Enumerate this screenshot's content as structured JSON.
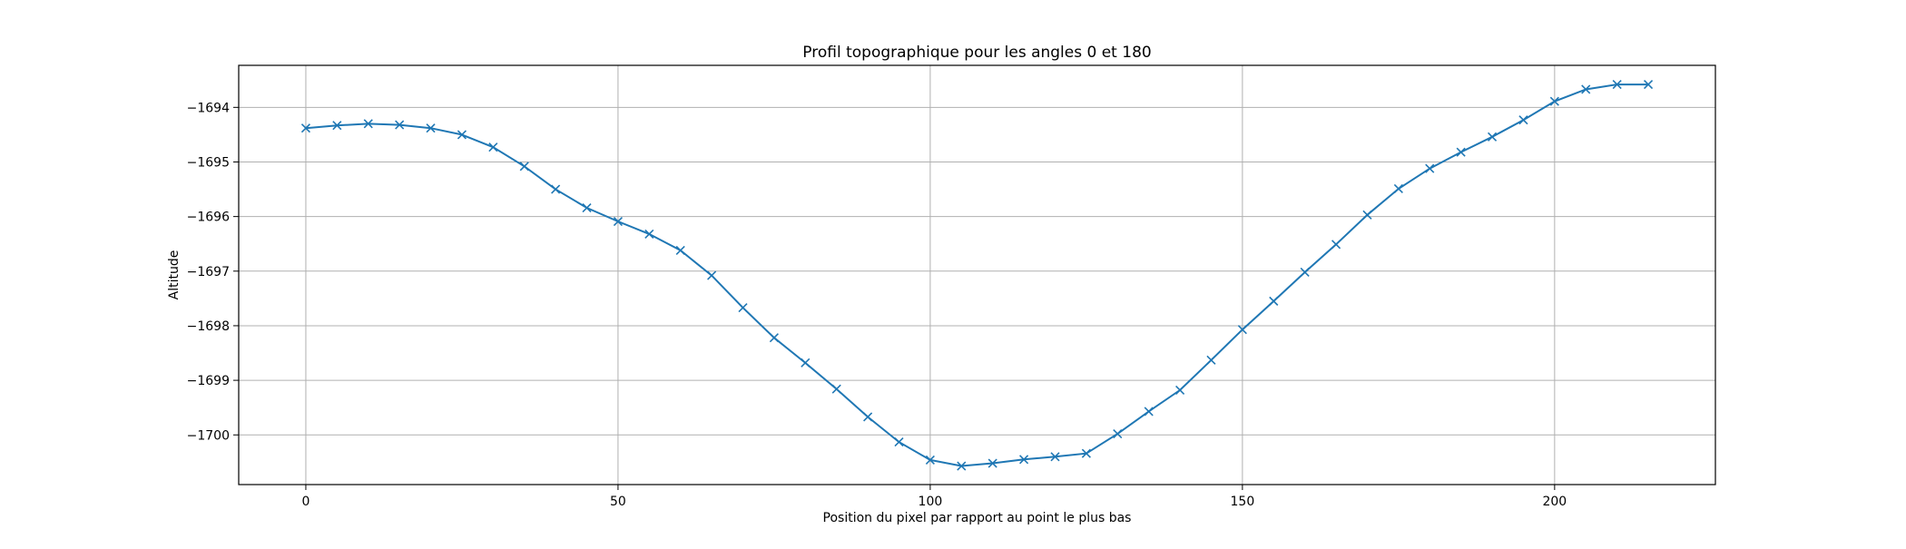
{
  "chart_data": {
    "type": "line",
    "title": "Profil topographique pour les angles 0 et 180",
    "xlabel": "Position du pixel par rapport au point le plus bas",
    "ylabel": "Altitude",
    "xlim": [
      -10.75,
      225.75
    ],
    "ylim": [
      -1700.91,
      -1693.23
    ],
    "x_ticks": [
      0,
      50,
      100,
      150,
      200
    ],
    "y_ticks": [
      -1700,
      -1699,
      -1698,
      -1697,
      -1696,
      -1695,
      -1694
    ],
    "x_tick_labels": [
      "0",
      "50",
      "100",
      "150",
      "200"
    ],
    "y_tick_labels": [
      "−1700",
      "−1699",
      "−1698",
      "−1697",
      "−1696",
      "−1695",
      "−1694"
    ],
    "grid": true,
    "series": [
      {
        "color": "#1f77b4",
        "marker": "x",
        "x": [
          0,
          5,
          10,
          15,
          20,
          25,
          30,
          35,
          40,
          45,
          50,
          55,
          60,
          65,
          70,
          75,
          80,
          85,
          90,
          95,
          100,
          105,
          110,
          115,
          120,
          125,
          130,
          135,
          140,
          145,
          150,
          155,
          160,
          165,
          170,
          175,
          180,
          185,
          190,
          195,
          200,
          205,
          210,
          215
        ],
        "y": [
          -1694.38,
          -1694.33,
          -1694.3,
          -1694.32,
          -1694.38,
          -1694.5,
          -1694.73,
          -1695.08,
          -1695.5,
          -1695.84,
          -1696.09,
          -1696.32,
          -1696.62,
          -1697.08,
          -1697.67,
          -1698.22,
          -1698.68,
          -1699.16,
          -1699.67,
          -1700.13,
          -1700.46,
          -1700.57,
          -1700.52,
          -1700.45,
          -1700.4,
          -1700.34,
          -1699.98,
          -1699.57,
          -1699.18,
          -1698.63,
          -1698.07,
          -1697.55,
          -1697.02,
          -1696.51,
          -1695.97,
          -1695.49,
          -1695.12,
          -1694.82,
          -1694.54,
          -1694.23,
          -1693.89,
          -1693.67,
          -1693.58,
          -1693.58
        ]
      }
    ]
  }
}
